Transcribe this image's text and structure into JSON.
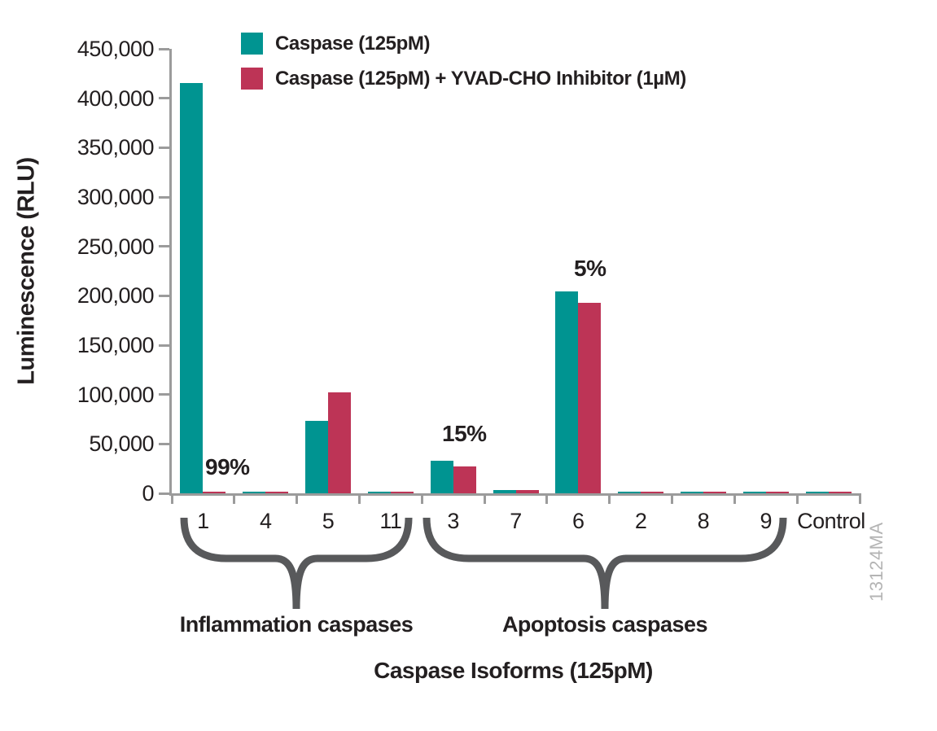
{
  "chart_data": {
    "type": "bar",
    "title": "",
    "xlabel": "Caspase Isoforms (125pM)",
    "ylabel": "Luminescence (RLU)",
    "categories": [
      "1",
      "4",
      "5",
      "11",
      "3",
      "7",
      "6",
      "2",
      "8",
      "9",
      "Control"
    ],
    "series": [
      {
        "name": "Caspase (125pM)",
        "color": "#009491",
        "values": [
          415000,
          1800,
          73500,
          1800,
          33000,
          3500,
          204000,
          1800,
          2000,
          2000,
          1800
        ]
      },
      {
        "name": "Caspase (125pM) + YVAD-CHO Inhibitor (1µM)",
        "color": "#BD3456",
        "values": [
          2000,
          2000,
          102500,
          2000,
          27500,
          3000,
          192500,
          1800,
          2000,
          2000,
          1800
        ]
      }
    ],
    "ylim": [
      0,
      450000
    ],
    "ytick_labels": [
      "0",
      "50,000",
      "100,000",
      "150,000",
      "200,000",
      "250,000",
      "300,000",
      "350,000",
      "400,000",
      "450,000"
    ],
    "grid": false,
    "legend_position": "top-left inside plot",
    "annotations": [
      {
        "text": "99%",
        "category": "1"
      },
      {
        "text": "15%",
        "category": "3"
      },
      {
        "text": "5%",
        "category": "6"
      }
    ],
    "group_brackets": [
      {
        "label": "Inflammation caspases",
        "categories": [
          "1",
          "4",
          "5",
          "11"
        ]
      },
      {
        "label": "Apoptosis caspases",
        "categories": [
          "3",
          "7",
          "6",
          "2",
          "8",
          "9"
        ]
      }
    ]
  },
  "watermark": "13124MA",
  "colors": {
    "teal": "#009491",
    "crimson": "#BD3456",
    "axis": "#9B9B9B",
    "text": "#231F20",
    "brace": "#58595B",
    "watermark": "#B4B4B4"
  }
}
